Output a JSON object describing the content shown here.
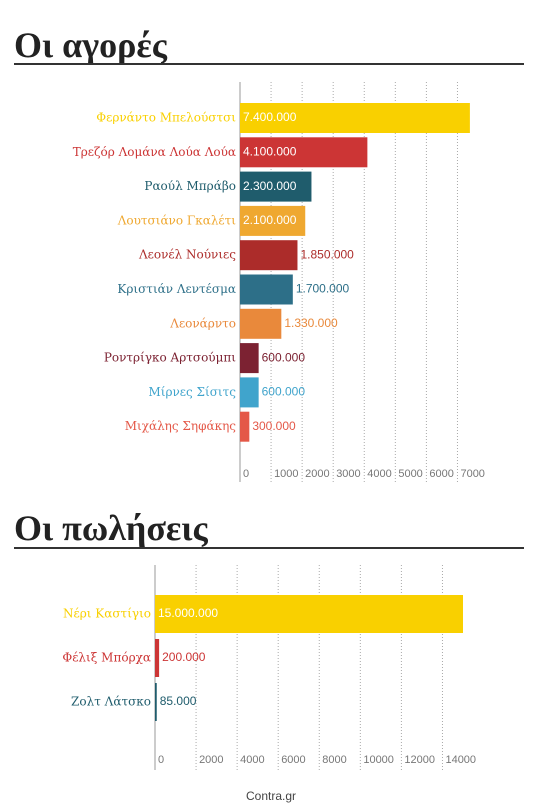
{
  "chart_data": [
    {
      "type": "bar",
      "title": "Οι αγορές",
      "categories": [
        "Φερνάντο Μπελούστσι",
        "Τρεζόρ Λομάνα Λούα Λούα",
        "Ραούλ Μπράβο",
        "Λουτσιάνο Γκαλέτι",
        "Λεονέλ Νούνιες",
        "Κριστιάν Λεντέσμα",
        "Λεονάρντο",
        "Ροντρίγκο Αρτσούμπι",
        "Μίρνες Σίσιτς",
        "Μιχάλης Σηφάκης"
      ],
      "values": [
        7400,
        4100,
        2300,
        2100,
        1850,
        1700,
        1330,
        600,
        600,
        300
      ],
      "value_labels": [
        "7.400.000",
        "4.100.000",
        "2.300.000",
        "2.100.000",
        "1.850.000",
        "1.700.000",
        "1.330.000",
        "600.000",
        "600.000",
        "300.000"
      ],
      "colors": [
        "#f9d000",
        "#cc3535",
        "#1f5c6c",
        "#efa830",
        "#ac2c2a",
        "#2d6f88",
        "#e9893b",
        "#7c2232",
        "#40a4cc",
        "#e45848"
      ],
      "xlim": [
        0,
        7500
      ],
      "xticks": [
        0,
        1000,
        2000,
        3000,
        4000,
        5000,
        6000,
        7000
      ],
      "grid": true
    },
    {
      "type": "bar",
      "title": "Οι πωλήσεις",
      "categories": [
        "Νέρι Καστίγιο",
        "Φέλιξ Μπόρχα",
        "Ζολτ Λάτσκο"
      ],
      "values": [
        15000,
        200,
        85
      ],
      "value_labels": [
        "15.000.000",
        "200.000",
        "85.000"
      ],
      "colors": [
        "#f9d000",
        "#cc3535",
        "#1f5c6c"
      ],
      "xlim": [
        0,
        15000
      ],
      "xticks": [
        0,
        2000,
        4000,
        6000,
        8000,
        10000,
        12000,
        14000
      ],
      "grid": true
    }
  ],
  "footer": "Contra.gr"
}
